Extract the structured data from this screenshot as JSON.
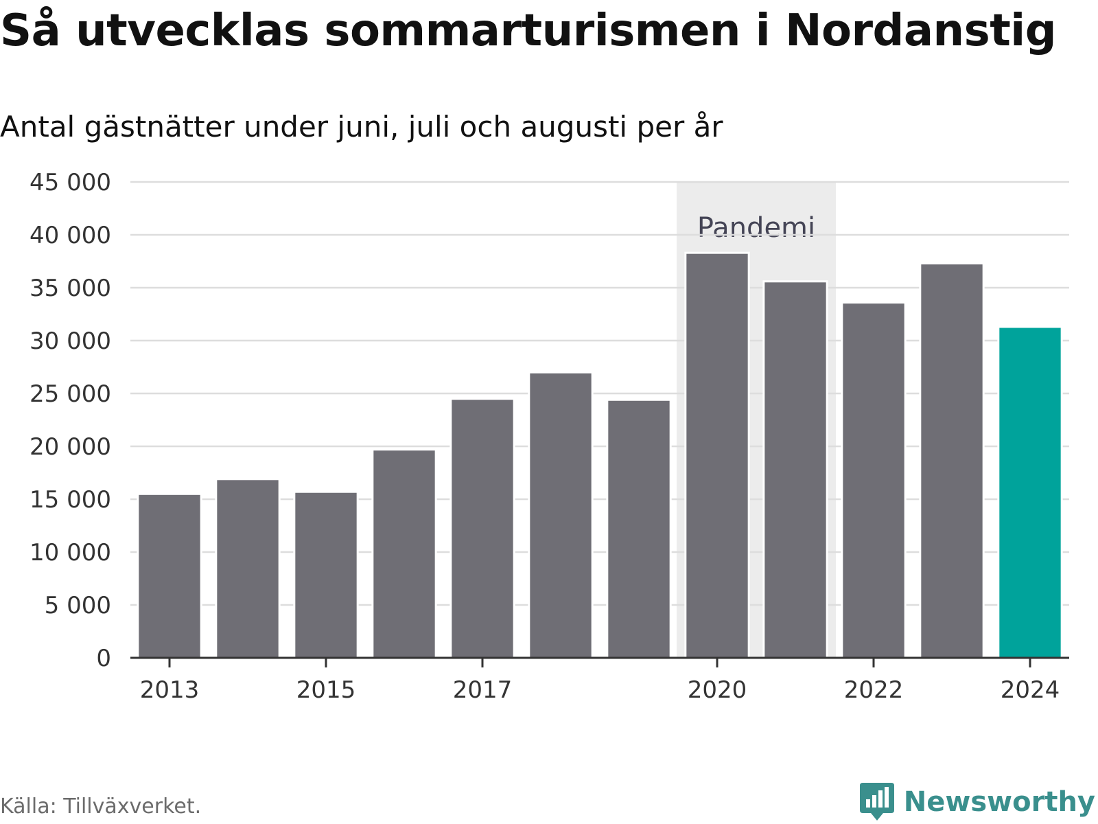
{
  "header": {
    "title": "Så utvecklas sommarturismen i Nordanstig",
    "subtitle": "Antal gästnätter under juni, juli och augusti per år"
  },
  "footer": {
    "source": "Källa: Tillväxverket.",
    "brand": "Newsworthy",
    "brand_icon": "bar-chart-speech-bubble-icon"
  },
  "colors": {
    "bar": "#6f6e75",
    "highlight_bar": "#00a39b",
    "band": "#ececec",
    "grid": "#dddddd",
    "axis": "#333333",
    "text": "#333333",
    "band_text": "#444455",
    "brand": "#3a8f8d"
  },
  "chart_data": {
    "type": "bar",
    "title": "Så utvecklas sommarturismen i Nordanstig",
    "subtitle": "Antal gästnätter under juni, juli och augusti per år",
    "xlabel": "",
    "ylabel": "",
    "categories": [
      2013,
      2014,
      2015,
      2016,
      2017,
      2018,
      2019,
      2020,
      2021,
      2022,
      2023,
      2024
    ],
    "values": [
      15500,
      16900,
      15700,
      19700,
      24500,
      27000,
      24400,
      38300,
      35600,
      33600,
      37300,
      31300
    ],
    "highlight": [
      2024
    ],
    "ylim": [
      0,
      45000
    ],
    "yticks": [
      0,
      5000,
      10000,
      15000,
      20000,
      25000,
      30000,
      35000,
      40000,
      45000
    ],
    "ytick_labels": [
      "0",
      "5 000",
      "10 000",
      "15 000",
      "20 000",
      "25 000",
      "30 000",
      "35 000",
      "40 000",
      "45 000"
    ],
    "xticks": [
      2013,
      2015,
      2017,
      2020,
      2022,
      2024
    ],
    "xtick_labels": [
      "2013",
      "2015",
      "2017",
      "2020",
      "2022",
      "2024"
    ],
    "grid": true,
    "legend": "none",
    "annotations": [
      {
        "type": "band",
        "from": 2020,
        "to": 2021,
        "label": "Pandemi"
      }
    ]
  }
}
